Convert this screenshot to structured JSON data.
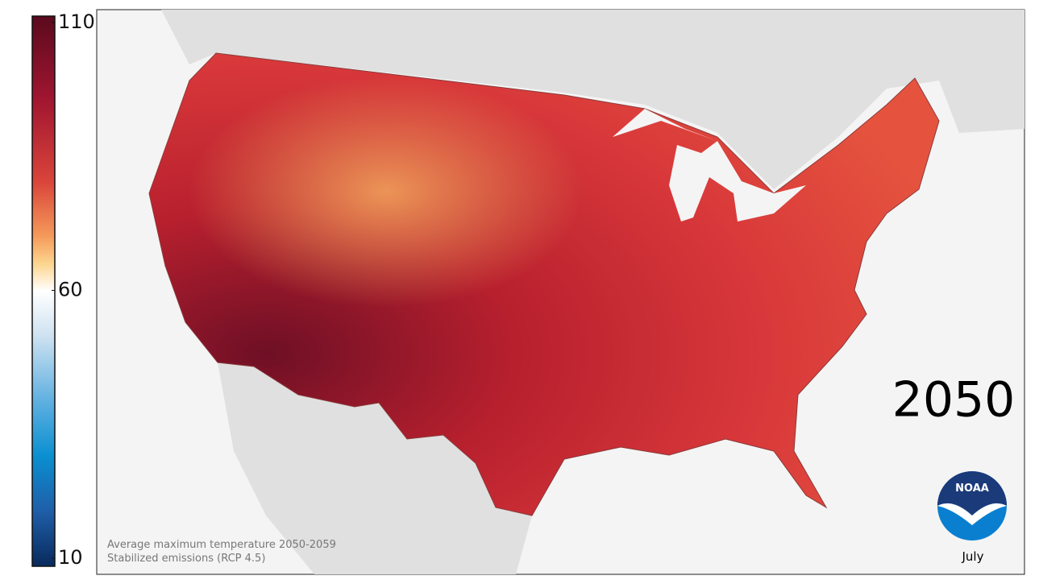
{
  "colorbar": {
    "min": 10,
    "max": 110,
    "ticks": [
      10,
      60,
      110
    ]
  },
  "year": "2050",
  "caption": {
    "line1": "Average maximum temperature 2050-2059",
    "line2": "Stabilized emissions (RCP 4.5)"
  },
  "logo": "NOAA",
  "month": "July"
}
